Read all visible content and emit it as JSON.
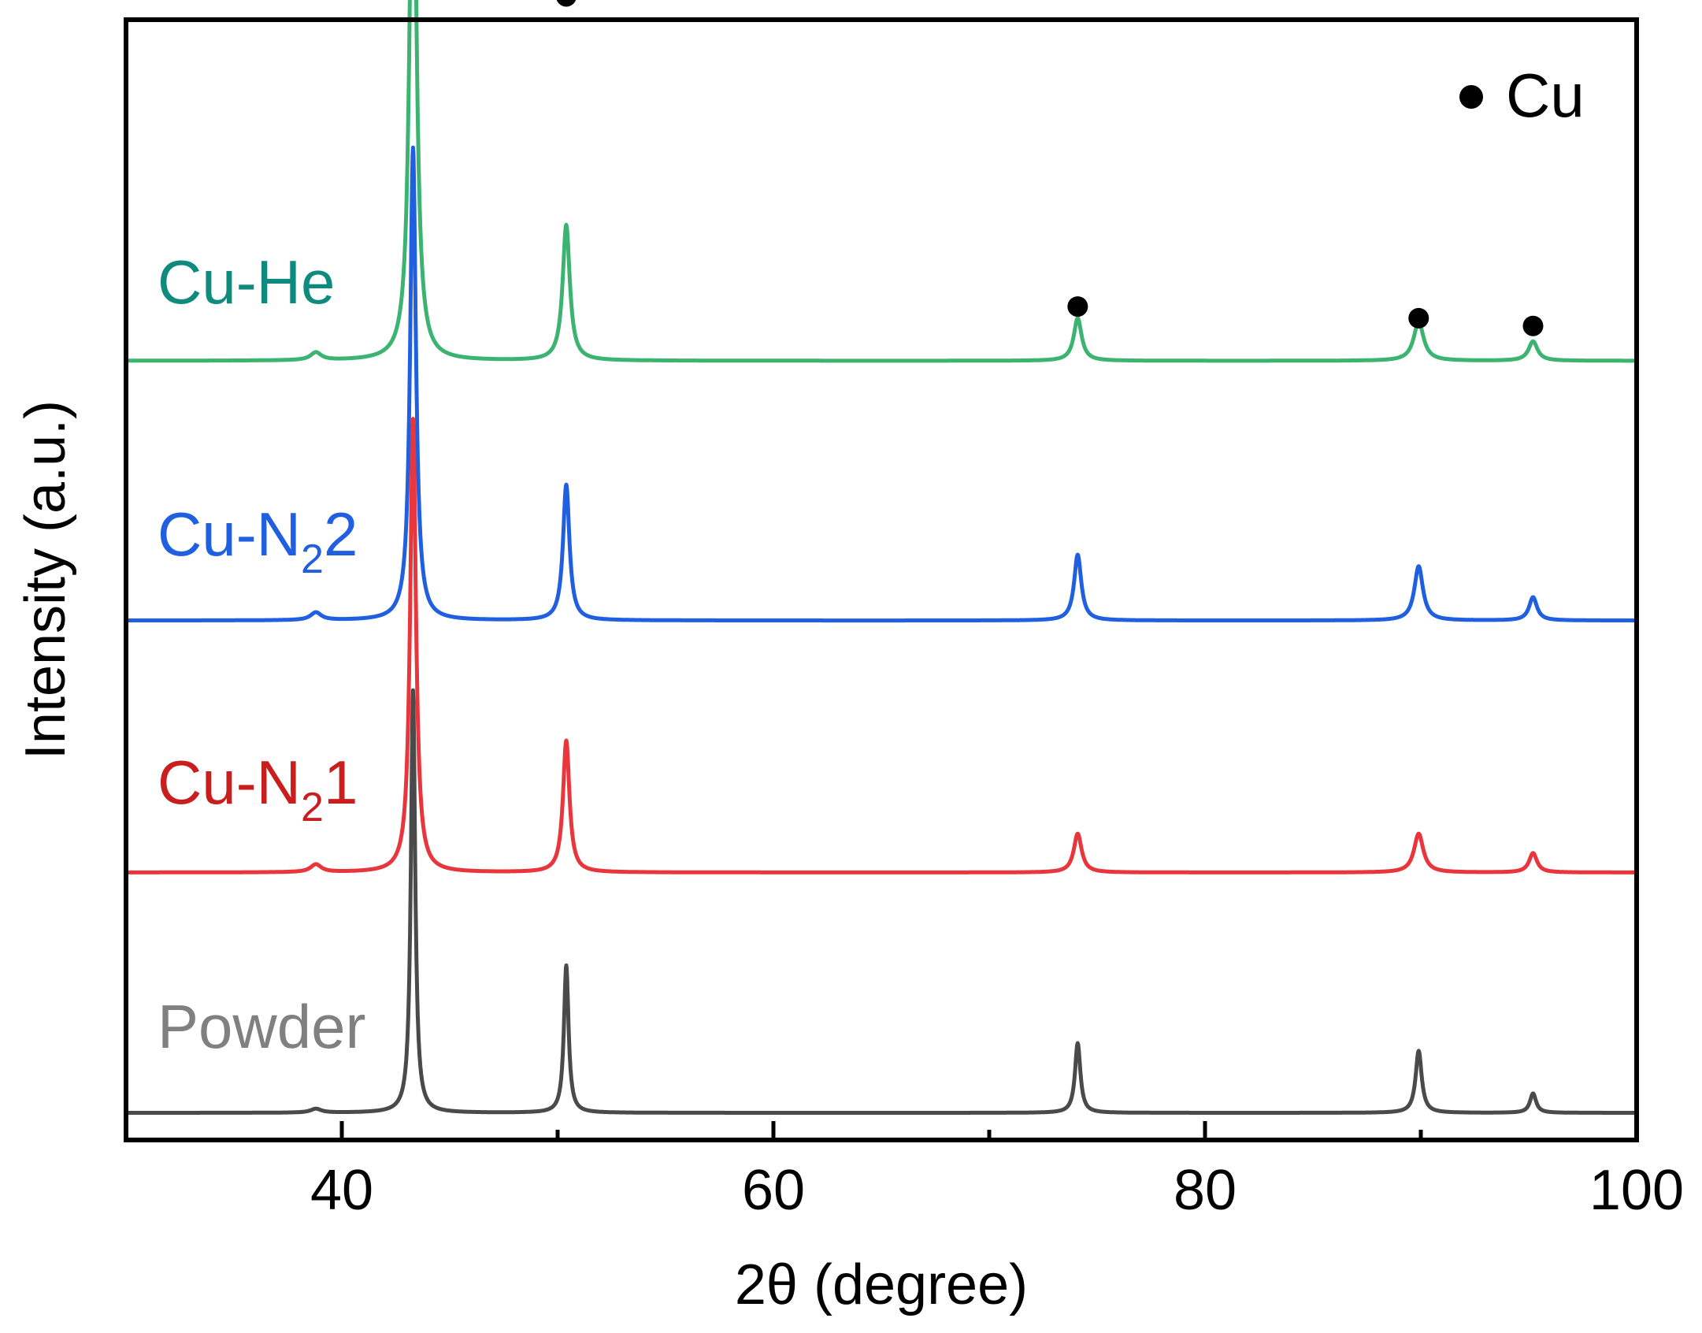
{
  "chart_data": {
    "type": "line",
    "xlabel": "2θ (degree)",
    "ylabel": "Intensity (a.u.)",
    "xlim": [
      30,
      100
    ],
    "x_ticks": [
      40,
      60,
      80,
      100
    ],
    "x_minor_ticks": [
      50,
      70,
      90
    ],
    "y_ticks_shown": false,
    "grid": false,
    "legend": {
      "marker": "filled-circle",
      "label": "Cu",
      "position": "top-right"
    },
    "marker_color": "#000000",
    "series": [
      {
        "name": "Cu-He",
        "name_parts": {
          "main": "Cu-He",
          "sub": "",
          "tail": ""
        },
        "color": "#3cb371",
        "label_color": "#0e8a7e",
        "baseline": 1.94,
        "peaks": [
          {
            "x": 38.8,
            "height": 0.02,
            "width": 0.3
          },
          {
            "x": 43.3,
            "height": 1.57,
            "width": 0.18
          },
          {
            "x": 50.4,
            "height": 0.35,
            "width": 0.2
          },
          {
            "x": 74.1,
            "height": 0.11,
            "width": 0.22
          },
          {
            "x": 89.9,
            "height": 0.1,
            "width": 0.28
          },
          {
            "x": 95.2,
            "height": 0.05,
            "width": 0.25
          }
        ]
      },
      {
        "name": "Cu-N2 2",
        "name_parts": {
          "main": "Cu-N",
          "sub": "2",
          "tail": "2"
        },
        "color": "#1f5fe0",
        "label_color": "#1f5fe0",
        "baseline": 1.27,
        "peaks": [
          {
            "x": 38.8,
            "height": 0.02,
            "width": 0.3
          },
          {
            "x": 43.3,
            "height": 1.22,
            "width": 0.16
          },
          {
            "x": 50.4,
            "height": 0.35,
            "width": 0.18
          },
          {
            "x": 74.1,
            "height": 0.17,
            "width": 0.2
          },
          {
            "x": 89.9,
            "height": 0.14,
            "width": 0.24
          },
          {
            "x": 95.2,
            "height": 0.06,
            "width": 0.22
          }
        ]
      },
      {
        "name": "Cu-N2 1",
        "name_parts": {
          "main": "Cu-N",
          "sub": "2",
          "tail": "1"
        },
        "color": "#e8363c",
        "label_color": "#c81e1e",
        "baseline": 0.62,
        "peaks": [
          {
            "x": 38.8,
            "height": 0.02,
            "width": 0.3
          },
          {
            "x": 43.3,
            "height": 1.17,
            "width": 0.16
          },
          {
            "x": 50.4,
            "height": 0.34,
            "width": 0.18
          },
          {
            "x": 74.1,
            "height": 0.1,
            "width": 0.22
          },
          {
            "x": 89.9,
            "height": 0.1,
            "width": 0.26
          },
          {
            "x": 95.2,
            "height": 0.05,
            "width": 0.22
          }
        ]
      },
      {
        "name": "Powder",
        "name_parts": {
          "main": "Powder",
          "sub": "",
          "tail": ""
        },
        "color": "#4a4a4a",
        "label_color": "#808080",
        "baseline": 0.0,
        "peaks": [
          {
            "x": 38.8,
            "height": 0.01,
            "width": 0.3
          },
          {
            "x": 43.3,
            "height": 1.09,
            "width": 0.12
          },
          {
            "x": 50.4,
            "height": 0.38,
            "width": 0.13
          },
          {
            "x": 74.1,
            "height": 0.18,
            "width": 0.15
          },
          {
            "x": 89.9,
            "height": 0.16,
            "width": 0.17
          },
          {
            "x": 95.2,
            "height": 0.05,
            "width": 0.17
          }
        ]
      }
    ],
    "cu_markers": [
      {
        "x": 43.3,
        "y": 3.6
      },
      {
        "x": 50.4,
        "y": 2.88
      },
      {
        "x": 74.1,
        "y": 2.08
      },
      {
        "x": 89.9,
        "y": 2.05
      },
      {
        "x": 95.2,
        "y": 2.03
      }
    ],
    "ylim": [
      -0.07,
      2.82
    ]
  }
}
